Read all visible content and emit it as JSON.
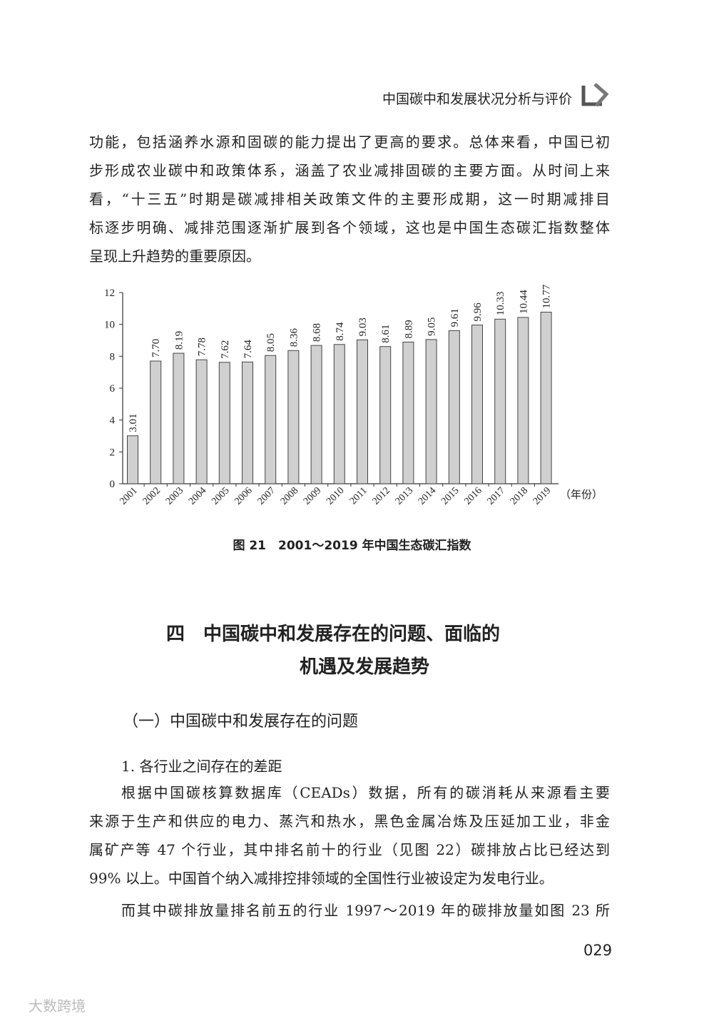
{
  "header": {
    "title": "中国碳中和发展状况分析与评价"
  },
  "paragraph_1": {
    "lines": [
      "功能，包括涵养水源和固碳的能力提出了更高的要求。总体来看，中国已初",
      "步形成农业碳中和政策体系，涵盖了农业减排固碳的主要方面。从时间上来",
      "看，“十三五”时期是碳减排相关政策文件的主要形成期，这一时期减排目",
      "标逐步明确、减排范围逐渐扩展到各个领域，这也是中国生态碳汇指数整体",
      "呈现上升趋势的重要原因。"
    ]
  },
  "chart_data": {
    "type": "bar",
    "title": "图 21　2001～2019 年中国生态碳汇指数",
    "x_unit": "（年份）",
    "categories": [
      "2001",
      "2002",
      "2003",
      "2004",
      "2005",
      "2006",
      "2007",
      "2008",
      "2009",
      "2010",
      "2011",
      "2012",
      "2013",
      "2014",
      "2015",
      "2016",
      "2017",
      "2018",
      "2019"
    ],
    "values": [
      3.01,
      7.7,
      8.19,
      7.78,
      7.62,
      7.64,
      8.05,
      8.36,
      8.68,
      8.74,
      9.03,
      8.61,
      8.89,
      9.05,
      9.61,
      9.96,
      10.33,
      10.44,
      10.77
    ],
    "value_labels": [
      "3.01",
      "7.70",
      "8.19",
      "7.78",
      "7.62",
      "7.64",
      "8.05",
      "8.36",
      "8.68",
      "8.74",
      "9.03",
      "8.61",
      "8.89",
      "9.05",
      "9.61",
      "9.96",
      "10.33",
      "10.44",
      "10.77"
    ],
    "color": "#d0d0d0",
    "ylim": [
      0,
      12
    ],
    "yticks": [
      0,
      2,
      4,
      6,
      8,
      10,
      12
    ],
    "grid": false
  },
  "section": {
    "lines": [
      "四　中国碳中和发展存在的问题、面临的",
      "机遇及发展趋势"
    ]
  },
  "subsection": {
    "title": "（一）中国碳中和发展存在的问题"
  },
  "subsubsection": {
    "title": "1. 各行业之间存在的差距"
  },
  "paragraph_2": {
    "lines": [
      "根据中国碳核算数据库（CEADs）数据，所有的碳消耗从来源看主要",
      "来源于生产和供应的电力、蒸汽和热水，黑色金属冶炼及压延加工业，非金",
      "属矿产等 47 个行业，其中排名前十的行业（见图 22）碳排放占比已经达到",
      "99% 以上。中国首个纳入减排控排领域的全国性行业被设定为发电行业。"
    ]
  },
  "paragraph_3": {
    "lines": [
      "而其中碳排放量排名前五的行业 1997～2019 年的碳排放量如图 23 所"
    ]
  },
  "page_number": "029",
  "watermark": "大数跨境"
}
